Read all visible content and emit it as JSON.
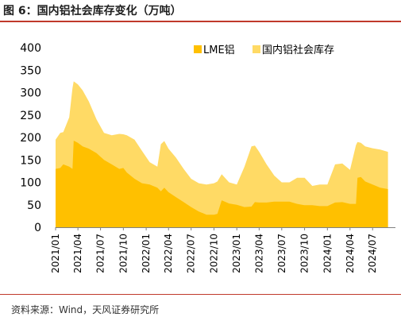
{
  "title": "图 6：国内铝社会库存变化（万吨）",
  "source": "资料来源：Wind，天风证券研究所",
  "colors": {
    "lme": "#FFC000",
    "domestic": "#FFDA65",
    "accent": "#c0392b"
  },
  "chart_data": {
    "type": "area",
    "stacked": true,
    "ylim": [
      0,
      400
    ],
    "yticks": [
      0,
      50,
      100,
      150,
      200,
      250,
      300,
      350,
      400
    ],
    "xlim": [
      "2021-01",
      "2024-10"
    ],
    "xtick_labels": [
      "2021/01",
      "2021/04",
      "2021/07",
      "2021/10",
      "2022/01",
      "2022/04",
      "2022/07",
      "2022/10",
      "2023/01",
      "2023/04",
      "2023/07",
      "2023/10",
      "2024/01",
      "2024/04",
      "2024/07"
    ],
    "xtick_dates": [
      "2021-01",
      "2021-04",
      "2021-07",
      "2021-10",
      "2022-01",
      "2022-04",
      "2022-07",
      "2022-10",
      "2023-01",
      "2023-04",
      "2023-07",
      "2023-10",
      "2024-01",
      "2024-04",
      "2024-07"
    ],
    "legend_position": "top-right",
    "series": [
      {
        "name": "LME铝",
        "color": "#FFC000",
        "points": [
          [
            "2021-01-01",
            130
          ],
          [
            "2021-01-20",
            132
          ],
          [
            "2021-02-01",
            140
          ],
          [
            "2021-02-25",
            135
          ],
          [
            "2021-03-10",
            130
          ],
          [
            "2021-03-15",
            193
          ],
          [
            "2021-04-01",
            188
          ],
          [
            "2021-04-20",
            180
          ],
          [
            "2021-05-15",
            175
          ],
          [
            "2021-06-15",
            165
          ],
          [
            "2021-07-15",
            150
          ],
          [
            "2021-08-15",
            140
          ],
          [
            "2021-09-15",
            130
          ],
          [
            "2021-10-01",
            132
          ],
          [
            "2021-10-15",
            122
          ],
          [
            "2021-11-15",
            108
          ],
          [
            "2021-12-15",
            98
          ],
          [
            "2022-01-15",
            95
          ],
          [
            "2022-02-15",
            88
          ],
          [
            "2022-03-01",
            80
          ],
          [
            "2022-03-15",
            88
          ],
          [
            "2022-04-01",
            78
          ],
          [
            "2022-05-01",
            67
          ],
          [
            "2022-06-01",
            56
          ],
          [
            "2022-07-01",
            45
          ],
          [
            "2022-08-01",
            35
          ],
          [
            "2022-09-01",
            28
          ],
          [
            "2022-10-01",
            28
          ],
          [
            "2022-10-15",
            30
          ],
          [
            "2022-11-01",
            60
          ],
          [
            "2022-12-01",
            53
          ],
          [
            "2023-01-01",
            50
          ],
          [
            "2023-02-01",
            45
          ],
          [
            "2023-03-01",
            46
          ],
          [
            "2023-03-15",
            56
          ],
          [
            "2023-04-01",
            55
          ],
          [
            "2023-05-01",
            55
          ],
          [
            "2023-06-01",
            57
          ],
          [
            "2023-07-01",
            57
          ],
          [
            "2023-08-01",
            57
          ],
          [
            "2023-09-01",
            52
          ],
          [
            "2023-10-01",
            49
          ],
          [
            "2023-11-01",
            49
          ],
          [
            "2023-12-01",
            47
          ],
          [
            "2024-01-01",
            47
          ],
          [
            "2024-02-01",
            55
          ],
          [
            "2024-03-01",
            56
          ],
          [
            "2024-04-01",
            52
          ],
          [
            "2024-04-25",
            52
          ],
          [
            "2024-05-01",
            110
          ],
          [
            "2024-05-15",
            112
          ],
          [
            "2024-06-01",
            102
          ],
          [
            "2024-07-01",
            95
          ],
          [
            "2024-08-01",
            88
          ],
          [
            "2024-09-01",
            85
          ]
        ]
      },
      {
        "name": "国内铝社会库存",
        "color": "#FFDA65",
        "points": [
          [
            "2021-01-01",
            195
          ],
          [
            "2021-01-20",
            210
          ],
          [
            "2021-02-01",
            212
          ],
          [
            "2021-02-25",
            245
          ],
          [
            "2021-03-10",
            310
          ],
          [
            "2021-03-15",
            325
          ],
          [
            "2021-04-01",
            318
          ],
          [
            "2021-04-20",
            305
          ],
          [
            "2021-05-15",
            280
          ],
          [
            "2021-06-15",
            240
          ],
          [
            "2021-07-15",
            210
          ],
          [
            "2021-08-15",
            205
          ],
          [
            "2021-09-15",
            208
          ],
          [
            "2021-10-01",
            207
          ],
          [
            "2021-10-15",
            205
          ],
          [
            "2021-11-15",
            195
          ],
          [
            "2021-12-15",
            170
          ],
          [
            "2022-01-15",
            145
          ],
          [
            "2022-02-15",
            135
          ],
          [
            "2022-03-01",
            185
          ],
          [
            "2022-03-15",
            192
          ],
          [
            "2022-04-01",
            175
          ],
          [
            "2022-05-01",
            155
          ],
          [
            "2022-06-01",
            130
          ],
          [
            "2022-07-01",
            108
          ],
          [
            "2022-08-01",
            98
          ],
          [
            "2022-09-01",
            95
          ],
          [
            "2022-10-01",
            98
          ],
          [
            "2022-10-15",
            102
          ],
          [
            "2022-11-01",
            118
          ],
          [
            "2022-12-01",
            100
          ],
          [
            "2023-01-01",
            95
          ],
          [
            "2023-02-01",
            135
          ],
          [
            "2023-03-01",
            180
          ],
          [
            "2023-03-15",
            182
          ],
          [
            "2023-04-01",
            168
          ],
          [
            "2023-05-01",
            140
          ],
          [
            "2023-06-01",
            115
          ],
          [
            "2023-07-01",
            100
          ],
          [
            "2023-08-01",
            100
          ],
          [
            "2023-09-01",
            110
          ],
          [
            "2023-10-01",
            110
          ],
          [
            "2023-11-01",
            92
          ],
          [
            "2023-12-01",
            95
          ],
          [
            "2024-01-01",
            95
          ],
          [
            "2024-02-01",
            140
          ],
          [
            "2024-03-01",
            142
          ],
          [
            "2024-04-01",
            128
          ],
          [
            "2024-04-25",
            183
          ],
          [
            "2024-05-01",
            190
          ],
          [
            "2024-05-15",
            188
          ],
          [
            "2024-06-01",
            180
          ],
          [
            "2024-07-01",
            176
          ],
          [
            "2024-08-01",
            173
          ],
          [
            "2024-09-01",
            168
          ]
        ]
      }
    ]
  }
}
